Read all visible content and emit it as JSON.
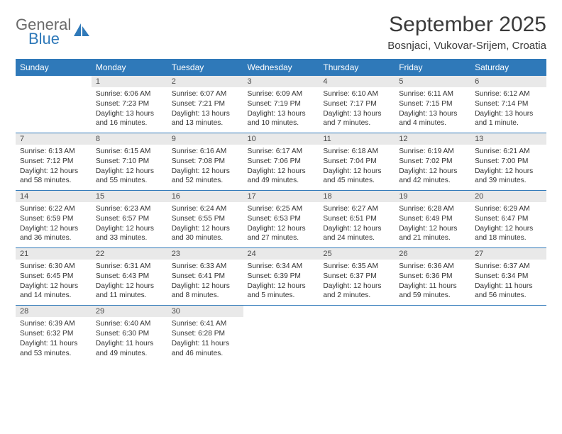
{
  "brand": {
    "line1": "General",
    "line2": "Blue",
    "accent_color": "#2f79b9",
    "muted_color": "#6a6a6a"
  },
  "title": "September 2025",
  "subtitle": "Bosnjaci, Vukovar-Srijem, Croatia",
  "colors": {
    "header_bg": "#2f79b9",
    "header_fg": "#ffffff",
    "daynum_bg": "#e9e9e9",
    "row_border": "#2f79b9",
    "text": "#333333"
  },
  "weekdays": [
    "Sunday",
    "Monday",
    "Tuesday",
    "Wednesday",
    "Thursday",
    "Friday",
    "Saturday"
  ],
  "weeks": [
    [
      null,
      {
        "n": "1",
        "sunrise": "Sunrise: 6:06 AM",
        "sunset": "Sunset: 7:23 PM",
        "day": "Daylight: 13 hours and 16 minutes."
      },
      {
        "n": "2",
        "sunrise": "Sunrise: 6:07 AM",
        "sunset": "Sunset: 7:21 PM",
        "day": "Daylight: 13 hours and 13 minutes."
      },
      {
        "n": "3",
        "sunrise": "Sunrise: 6:09 AM",
        "sunset": "Sunset: 7:19 PM",
        "day": "Daylight: 13 hours and 10 minutes."
      },
      {
        "n": "4",
        "sunrise": "Sunrise: 6:10 AM",
        "sunset": "Sunset: 7:17 PM",
        "day": "Daylight: 13 hours and 7 minutes."
      },
      {
        "n": "5",
        "sunrise": "Sunrise: 6:11 AM",
        "sunset": "Sunset: 7:15 PM",
        "day": "Daylight: 13 hours and 4 minutes."
      },
      {
        "n": "6",
        "sunrise": "Sunrise: 6:12 AM",
        "sunset": "Sunset: 7:14 PM",
        "day": "Daylight: 13 hours and 1 minute."
      }
    ],
    [
      {
        "n": "7",
        "sunrise": "Sunrise: 6:13 AM",
        "sunset": "Sunset: 7:12 PM",
        "day": "Daylight: 12 hours and 58 minutes."
      },
      {
        "n": "8",
        "sunrise": "Sunrise: 6:15 AM",
        "sunset": "Sunset: 7:10 PM",
        "day": "Daylight: 12 hours and 55 minutes."
      },
      {
        "n": "9",
        "sunrise": "Sunrise: 6:16 AM",
        "sunset": "Sunset: 7:08 PM",
        "day": "Daylight: 12 hours and 52 minutes."
      },
      {
        "n": "10",
        "sunrise": "Sunrise: 6:17 AM",
        "sunset": "Sunset: 7:06 PM",
        "day": "Daylight: 12 hours and 49 minutes."
      },
      {
        "n": "11",
        "sunrise": "Sunrise: 6:18 AM",
        "sunset": "Sunset: 7:04 PM",
        "day": "Daylight: 12 hours and 45 minutes."
      },
      {
        "n": "12",
        "sunrise": "Sunrise: 6:19 AM",
        "sunset": "Sunset: 7:02 PM",
        "day": "Daylight: 12 hours and 42 minutes."
      },
      {
        "n": "13",
        "sunrise": "Sunrise: 6:21 AM",
        "sunset": "Sunset: 7:00 PM",
        "day": "Daylight: 12 hours and 39 minutes."
      }
    ],
    [
      {
        "n": "14",
        "sunrise": "Sunrise: 6:22 AM",
        "sunset": "Sunset: 6:59 PM",
        "day": "Daylight: 12 hours and 36 minutes."
      },
      {
        "n": "15",
        "sunrise": "Sunrise: 6:23 AM",
        "sunset": "Sunset: 6:57 PM",
        "day": "Daylight: 12 hours and 33 minutes."
      },
      {
        "n": "16",
        "sunrise": "Sunrise: 6:24 AM",
        "sunset": "Sunset: 6:55 PM",
        "day": "Daylight: 12 hours and 30 minutes."
      },
      {
        "n": "17",
        "sunrise": "Sunrise: 6:25 AM",
        "sunset": "Sunset: 6:53 PM",
        "day": "Daylight: 12 hours and 27 minutes."
      },
      {
        "n": "18",
        "sunrise": "Sunrise: 6:27 AM",
        "sunset": "Sunset: 6:51 PM",
        "day": "Daylight: 12 hours and 24 minutes."
      },
      {
        "n": "19",
        "sunrise": "Sunrise: 6:28 AM",
        "sunset": "Sunset: 6:49 PM",
        "day": "Daylight: 12 hours and 21 minutes."
      },
      {
        "n": "20",
        "sunrise": "Sunrise: 6:29 AM",
        "sunset": "Sunset: 6:47 PM",
        "day": "Daylight: 12 hours and 18 minutes."
      }
    ],
    [
      {
        "n": "21",
        "sunrise": "Sunrise: 6:30 AM",
        "sunset": "Sunset: 6:45 PM",
        "day": "Daylight: 12 hours and 14 minutes."
      },
      {
        "n": "22",
        "sunrise": "Sunrise: 6:31 AM",
        "sunset": "Sunset: 6:43 PM",
        "day": "Daylight: 12 hours and 11 minutes."
      },
      {
        "n": "23",
        "sunrise": "Sunrise: 6:33 AM",
        "sunset": "Sunset: 6:41 PM",
        "day": "Daylight: 12 hours and 8 minutes."
      },
      {
        "n": "24",
        "sunrise": "Sunrise: 6:34 AM",
        "sunset": "Sunset: 6:39 PM",
        "day": "Daylight: 12 hours and 5 minutes."
      },
      {
        "n": "25",
        "sunrise": "Sunrise: 6:35 AM",
        "sunset": "Sunset: 6:37 PM",
        "day": "Daylight: 12 hours and 2 minutes."
      },
      {
        "n": "26",
        "sunrise": "Sunrise: 6:36 AM",
        "sunset": "Sunset: 6:36 PM",
        "day": "Daylight: 11 hours and 59 minutes."
      },
      {
        "n": "27",
        "sunrise": "Sunrise: 6:37 AM",
        "sunset": "Sunset: 6:34 PM",
        "day": "Daylight: 11 hours and 56 minutes."
      }
    ],
    [
      {
        "n": "28",
        "sunrise": "Sunrise: 6:39 AM",
        "sunset": "Sunset: 6:32 PM",
        "day": "Daylight: 11 hours and 53 minutes."
      },
      {
        "n": "29",
        "sunrise": "Sunrise: 6:40 AM",
        "sunset": "Sunset: 6:30 PM",
        "day": "Daylight: 11 hours and 49 minutes."
      },
      {
        "n": "30",
        "sunrise": "Sunrise: 6:41 AM",
        "sunset": "Sunset: 6:28 PM",
        "day": "Daylight: 11 hours and 46 minutes."
      },
      null,
      null,
      null,
      null
    ]
  ]
}
